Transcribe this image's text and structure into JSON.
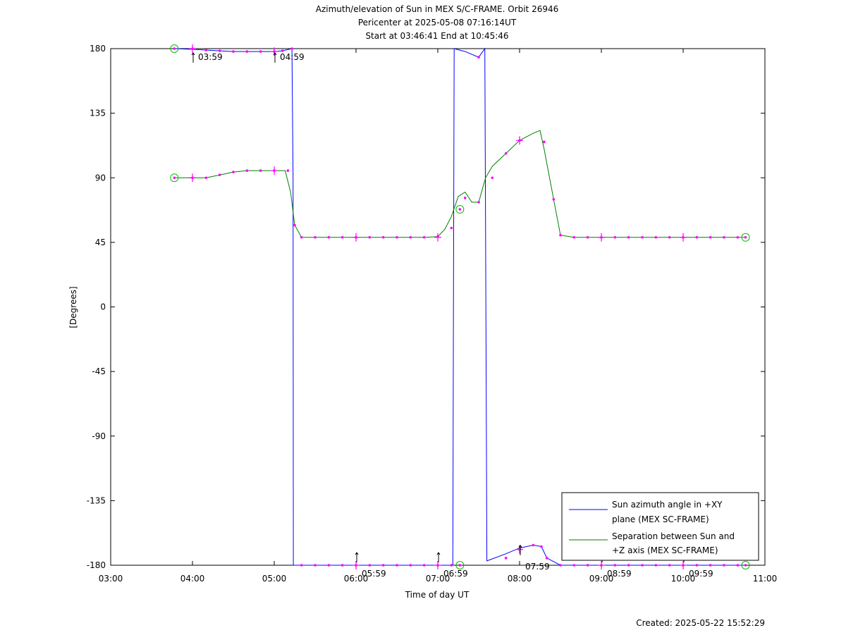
{
  "chart_data": {
    "type": "line",
    "title_lines": [
      "Azimuth/elevation of Sun in MEX S/C-FRAME.  Orbit 26946",
      "Pericenter at 2025-05-08 07:16:14UT",
      "Start at 03:46:41 End at 10:45:46"
    ],
    "xlabel": "Time of day UT",
    "ylabel": "[Degrees]",
    "xlim": [
      180,
      660
    ],
    "ylim": [
      -180,
      180
    ],
    "x_unit": "minutes of day",
    "x_ticks": [
      {
        "v": 180,
        "label": "03:00"
      },
      {
        "v": 240,
        "label": "04:00"
      },
      {
        "v": 300,
        "label": "05:00"
      },
      {
        "v": 360,
        "label": "06:00"
      },
      {
        "v": 420,
        "label": "07:00"
      },
      {
        "v": 480,
        "label": "08:00"
      },
      {
        "v": 540,
        "label": "09:00"
      },
      {
        "v": 600,
        "label": "10:00"
      },
      {
        "v": 660,
        "label": "11:00"
      }
    ],
    "y_ticks": [
      180,
      135,
      90,
      45,
      0,
      -45,
      -90,
      -135,
      -180
    ],
    "grid": false,
    "legend_position": "bottom-right",
    "series": [
      {
        "name": "Sun azimuth angle in +XY plane (MEX SC-FRAME)",
        "legend_lines": [
          "Sun azimuth angle in +XY",
          "plane (MEX SC-FRAME)"
        ],
        "color": "#0000ff",
        "x": [
          226.7,
          240,
          250,
          260,
          270,
          280,
          290,
          300,
          306,
          313,
          313.8,
          314,
          316,
          330,
          360,
          400,
          420,
          431,
          431.5,
          432,
          440,
          450,
          454.5,
          455.3,
          456,
          470,
          480,
          490,
          496,
          500,
          510,
          540,
          600,
          645.8
        ],
        "y": [
          180,
          179.5,
          179,
          178.5,
          178,
          178,
          178,
          178,
          178.5,
          180,
          90,
          -180,
          -180,
          -180,
          -180,
          -180,
          -180,
          -180,
          0,
          180,
          178,
          174,
          180,
          0,
          -177,
          -172,
          -168,
          -166,
          -167,
          -175,
          -180,
          -180,
          -180,
          -180
        ]
      },
      {
        "name": "Separation between Sun and +Z axis (MEX SC-FRAME)",
        "legend_lines": [
          "Separation between Sun and",
          "+Z axis (MEX SC-FRAME)"
        ],
        "color": "#008000",
        "x": [
          226.7,
          240,
          250,
          260,
          270,
          280,
          290,
          300,
          308,
          312,
          315,
          320,
          340,
          360,
          380,
          400,
          410,
          420,
          425,
          430,
          435,
          440,
          445,
          450,
          455,
          460,
          470,
          480,
          490,
          495,
          498,
          505,
          510,
          520,
          540,
          580,
          645.8
        ],
        "y": [
          90,
          90,
          90,
          92,
          94,
          95,
          95,
          95,
          95,
          80,
          57,
          48.5,
          48.5,
          48.5,
          48.5,
          48.5,
          48.5,
          49,
          54,
          63,
          77,
          80,
          73,
          73,
          90,
          98,
          107,
          116,
          121,
          123,
          110,
          75,
          50,
          48.5,
          48.5,
          48.5,
          48.5
        ]
      }
    ],
    "time_annotations": [
      {
        "x": 240,
        "y": 180,
        "label": "03:59"
      },
      {
        "x": 300,
        "y": 180,
        "label": "04:59"
      },
      {
        "x": 360,
        "y": -180,
        "label": "05:59"
      },
      {
        "x": 420,
        "y": -180,
        "label": "06:59"
      },
      {
        "x": 480,
        "y": -175,
        "label": "07:59"
      },
      {
        "x": 540,
        "y": -180,
        "label": "08:59"
      },
      {
        "x": 600,
        "y": -180,
        "label": "09:59"
      }
    ],
    "start_end_markers": [
      {
        "x": 226.7,
        "y": 180
      },
      {
        "x": 226.7,
        "y": 90
      },
      {
        "x": 436.2,
        "y": 68
      },
      {
        "x": 436.2,
        "y": -180
      },
      {
        "x": 645.8,
        "y": 48.5
      },
      {
        "x": 645.8,
        "y": -180
      }
    ],
    "point_markers": {
      "color": "#ff00ff",
      "azimuth": [
        [
          240,
          180
        ],
        [
          250,
          179
        ],
        [
          260,
          178.5
        ],
        [
          270,
          178
        ],
        [
          280,
          178
        ],
        [
          290,
          178
        ],
        [
          300,
          178
        ],
        [
          306,
          178.5
        ],
        [
          313,
          180
        ],
        [
          320,
          -180
        ],
        [
          330,
          -180
        ],
        [
          340,
          -180
        ],
        [
          350,
          -180
        ],
        [
          360,
          -180
        ],
        [
          370,
          -180
        ],
        [
          380,
          -180
        ],
        [
          390,
          -180
        ],
        [
          400,
          -180
        ],
        [
          410,
          -180
        ],
        [
          420,
          -180
        ],
        [
          430,
          -180
        ],
        [
          450,
          174
        ],
        [
          470,
          -175
        ],
        [
          480,
          -169
        ],
        [
          490,
          -166
        ],
        [
          496,
          -167
        ],
        [
          500,
          -175
        ],
        [
          510,
          -180
        ],
        [
          520,
          -180
        ],
        [
          530,
          -180
        ],
        [
          540,
          -180
        ],
        [
          550,
          -180
        ],
        [
          560,
          -180
        ],
        [
          570,
          -180
        ],
        [
          580,
          -180
        ],
        [
          590,
          -180
        ],
        [
          600,
          -180
        ],
        [
          610,
          -180
        ],
        [
          620,
          -180
        ],
        [
          630,
          -180
        ],
        [
          640,
          -180
        ]
      ],
      "separation": [
        [
          240,
          90
        ],
        [
          250,
          90
        ],
        [
          260,
          92
        ],
        [
          270,
          94
        ],
        [
          280,
          95
        ],
        [
          290,
          95
        ],
        [
          300,
          95
        ],
        [
          310,
          95
        ],
        [
          315,
          57
        ],
        [
          320,
          48.5
        ],
        [
          330,
          48.5
        ],
        [
          340,
          48.5
        ],
        [
          350,
          48.5
        ],
        [
          360,
          48.5
        ],
        [
          370,
          48.5
        ],
        [
          380,
          48.5
        ],
        [
          390,
          48.5
        ],
        [
          400,
          48.5
        ],
        [
          410,
          48.5
        ],
        [
          420,
          49
        ],
        [
          430,
          55
        ],
        [
          440,
          76
        ],
        [
          450,
          73
        ],
        [
          460,
          90
        ],
        [
          470,
          107
        ],
        [
          480,
          116
        ],
        [
          498,
          115
        ],
        [
          505,
          75
        ],
        [
          510,
          50
        ],
        [
          520,
          48.5
        ],
        [
          530,
          48.5
        ],
        [
          540,
          48.5
        ],
        [
          550,
          48.5
        ],
        [
          560,
          48.5
        ],
        [
          570,
          48.5
        ],
        [
          580,
          48.5
        ],
        [
          590,
          48.5
        ],
        [
          600,
          48.5
        ],
        [
          610,
          48.5
        ],
        [
          620,
          48.5
        ],
        [
          630,
          48.5
        ],
        [
          640,
          48.5
        ]
      ],
      "hour_crosses": [
        [
          240,
          90
        ],
        [
          300,
          95
        ],
        [
          360,
          48.5
        ],
        [
          420,
          48.5
        ],
        [
          480,
          116
        ],
        [
          540,
          48.5
        ],
        [
          600,
          48.5
        ],
        [
          240,
          180
        ],
        [
          300,
          178
        ],
        [
          360,
          -180
        ],
        [
          420,
          -180
        ],
        [
          480,
          -169
        ],
        [
          540,
          -180
        ],
        [
          600,
          -180
        ]
      ]
    },
    "footer": "Created: 2025-05-22 15:52:29"
  }
}
